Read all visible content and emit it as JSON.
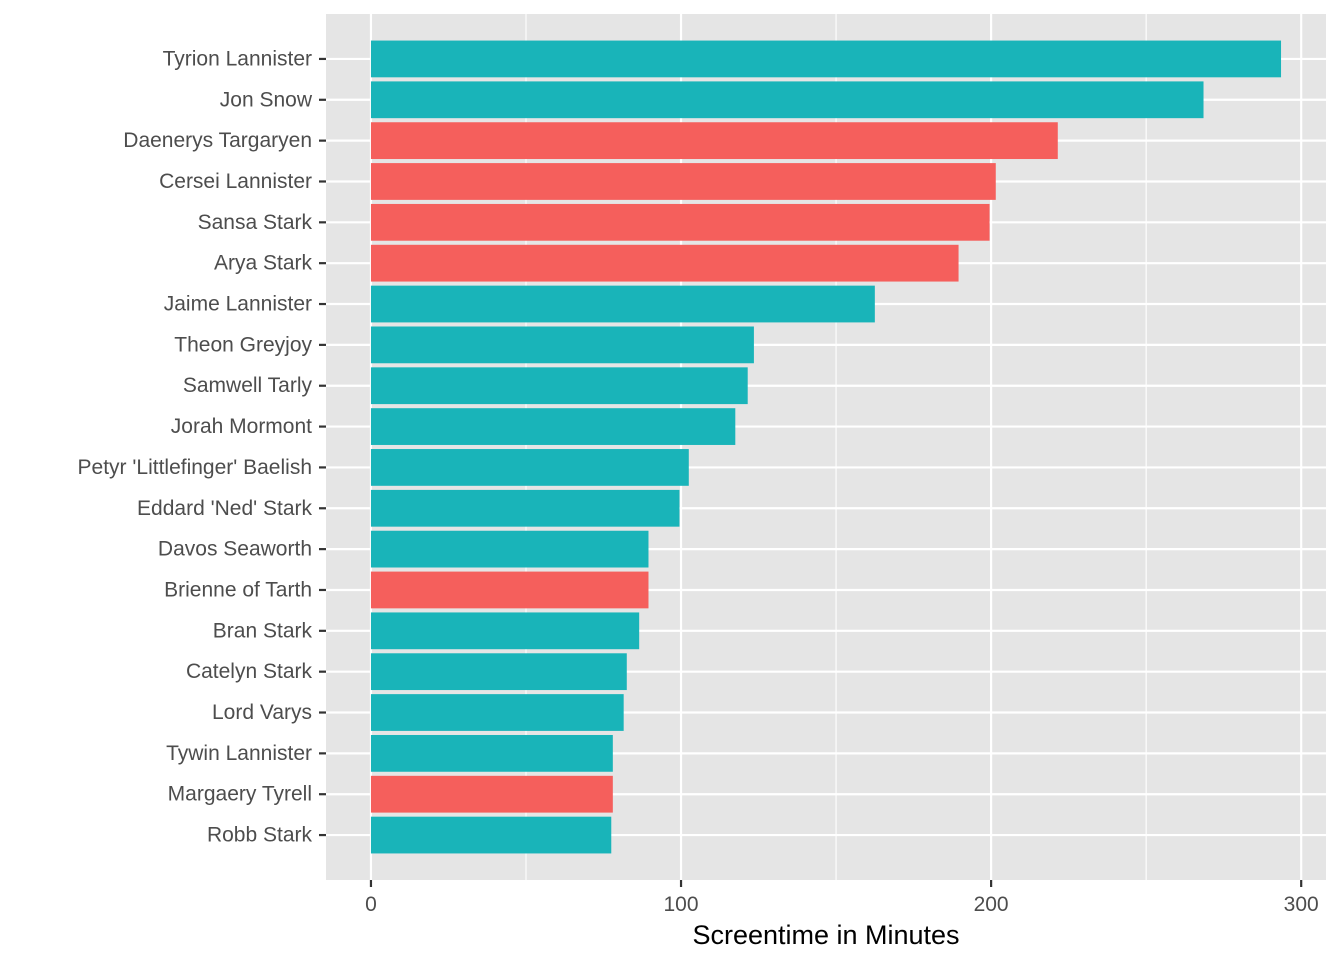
{
  "chart_data": {
    "type": "bar",
    "orientation": "horizontal",
    "categories": [
      "Tyrion Lannister",
      "Jon Snow",
      "Daenerys Targaryen",
      "Cersei Lannister",
      "Sansa Stark",
      "Arya Stark",
      "Jaime Lannister",
      "Theon Greyjoy",
      "Samwell Tarly",
      "Jorah Mormont",
      "Petyr 'Littlefinger' Baelish",
      "Eddard 'Ned' Stark",
      "Davos Seaworth",
      "Brienne of Tarth",
      "Bran Stark",
      "Catelyn Stark",
      "Lord Varys",
      "Tywin Lannister",
      "Margaery Tyrell",
      "Robb Stark"
    ],
    "values": [
      293.5,
      268.5,
      221.5,
      201.5,
      199.5,
      189.5,
      162.5,
      123.5,
      121.5,
      117.5,
      102.5,
      99.5,
      89.5,
      89.5,
      86.5,
      82.5,
      81.5,
      78.0,
      78.0,
      77.5
    ],
    "bar_colors": [
      "#19B4B9",
      "#19B4B9",
      "#F55F5C",
      "#F55F5C",
      "#F55F5C",
      "#F55F5C",
      "#19B4B9",
      "#19B4B9",
      "#19B4B9",
      "#19B4B9",
      "#19B4B9",
      "#19B4B9",
      "#19B4B9",
      "#F55F5C",
      "#19B4B9",
      "#19B4B9",
      "#19B4B9",
      "#19B4B9",
      "#F55F5C",
      "#19B4B9"
    ],
    "xlabel": "Screentime in Minutes",
    "ylabel": "",
    "title": "",
    "xlim": [
      -14.5,
      308
    ],
    "xticks": [
      0,
      100,
      200,
      300
    ],
    "xtick_labels": [
      "0",
      "100",
      "200",
      "300"
    ],
    "x_minor_gridlines": [
      50,
      150,
      250
    ],
    "grid": true,
    "legend": "none",
    "colors": {
      "panel_background": "#E5E5E5",
      "gridline": "#FFFFFF",
      "tick": "#333333",
      "teal": "#19B4B9",
      "red": "#F55F5C"
    }
  }
}
